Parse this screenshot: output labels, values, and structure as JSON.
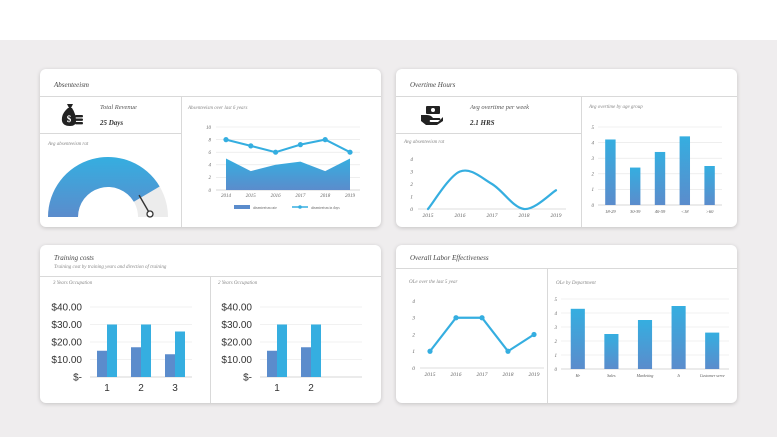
{
  "colors": {
    "accent": "#35aee0",
    "secondary": "#5b8ccc",
    "background": "#efedee"
  },
  "absenteeism": {
    "title": "Absenteeism",
    "kpi_label": "Total Revenue",
    "kpi_value": "25 Days",
    "icon": "money-bag-icon",
    "gauge_label": "Avg absenteeism rat",
    "gauge_value": 0.83,
    "trend_title": "Absenteeism over last 6 years"
  },
  "overtime": {
    "title": "Overtime Hours",
    "kpi_label": "Avg overtime per week",
    "kpi_value": "2.1 HRS",
    "icon": "hand-cash-icon",
    "rate_title": "Avg absenteeism rat",
    "age_title": "Avg overtime by age group"
  },
  "training": {
    "title": "Training costs",
    "subtitle": "Training cost by training years and direction of training",
    "left_title": "3 Years Occupation",
    "right_title": "2 Years Occupation"
  },
  "labor": {
    "title": "Overall Labor Effectiveness",
    "trend_title": "OLe over the last 5 year",
    "dept_title": "OLe by Department"
  },
  "chart_data": [
    {
      "id": "absenteeism-trend",
      "type": "area",
      "title": "Absenteeism over last 6 years",
      "x": [
        "2014",
        "2015",
        "2016",
        "2017",
        "2018",
        "2019"
      ],
      "ylim": [
        0,
        10
      ],
      "yticks": [
        "0",
        "2",
        "4",
        "6",
        "8",
        "10"
      ],
      "series": [
        {
          "name": "absenteeism rate",
          "kind": "area",
          "values": [
            5,
            3,
            4,
            4.5,
            3,
            5
          ]
        },
        {
          "name": "absenteeism in days",
          "kind": "line",
          "values": [
            8,
            7,
            6,
            7.2,
            8,
            6
          ]
        }
      ]
    },
    {
      "id": "overtime-rate",
      "type": "line",
      "title": "Avg absenteeism rat",
      "x": [
        "2015",
        "2016",
        "2017",
        "2018",
        "2019"
      ],
      "ylim": [
        0,
        4
      ],
      "yticks": [
        "0",
        "1",
        "2",
        "3",
        "4"
      ],
      "series": [
        {
          "values": [
            0,
            3,
            2,
            0,
            1.5
          ]
        }
      ]
    },
    {
      "id": "overtime-age",
      "type": "bar",
      "title": "Avg overtime by age group",
      "categories": [
        "18-29",
        "30-39",
        "40-59",
        "<18",
        ">60"
      ],
      "ylim": [
        0,
        5
      ],
      "yticks": [
        "0",
        "1",
        "2",
        "3",
        "4",
        "5"
      ],
      "values": [
        4.2,
        2.4,
        3.4,
        4.4,
        2.5
      ]
    },
    {
      "id": "training-3y",
      "type": "bar",
      "title": "3 Years Occupation",
      "categories": [
        "1",
        "2",
        "3"
      ],
      "ylim": [
        0,
        40
      ],
      "yticks": [
        "$-",
        "$10.00",
        "$20.00",
        "$30.00",
        "$40.00"
      ],
      "series": [
        {
          "values": [
            15,
            17,
            13
          ]
        },
        {
          "values": [
            30,
            30,
            26
          ]
        }
      ]
    },
    {
      "id": "training-2y",
      "type": "bar",
      "title": "2 Years Occupation",
      "categories": [
        "1",
        "2"
      ],
      "ylim": [
        0,
        40
      ],
      "yticks": [
        "$-",
        "$10.00",
        "$20.00",
        "$30.00",
        "$40.00"
      ],
      "series": [
        {
          "values": [
            15,
            17
          ]
        },
        {
          "values": [
            30,
            30
          ]
        }
      ]
    },
    {
      "id": "labor-trend",
      "type": "line",
      "title": "OLe over the last 5 year",
      "x": [
        "2015",
        "2016",
        "2017",
        "2018",
        "2019"
      ],
      "ylim": [
        0,
        4
      ],
      "yticks": [
        "0",
        "1",
        "2",
        "3",
        "4"
      ],
      "series": [
        {
          "values": [
            1,
            3,
            3,
            1,
            2
          ]
        }
      ]
    },
    {
      "id": "labor-dept",
      "type": "bar",
      "title": "OLe by Department",
      "categories": [
        "Hr",
        "Sales",
        "Marketing",
        "It",
        "Customer serve"
      ],
      "ylim": [
        0,
        5
      ],
      "yticks": [
        "0",
        "1",
        "2",
        "3",
        "4",
        "5"
      ],
      "values": [
        4.3,
        2.5,
        3.5,
        4.5,
        2.6
      ]
    }
  ]
}
